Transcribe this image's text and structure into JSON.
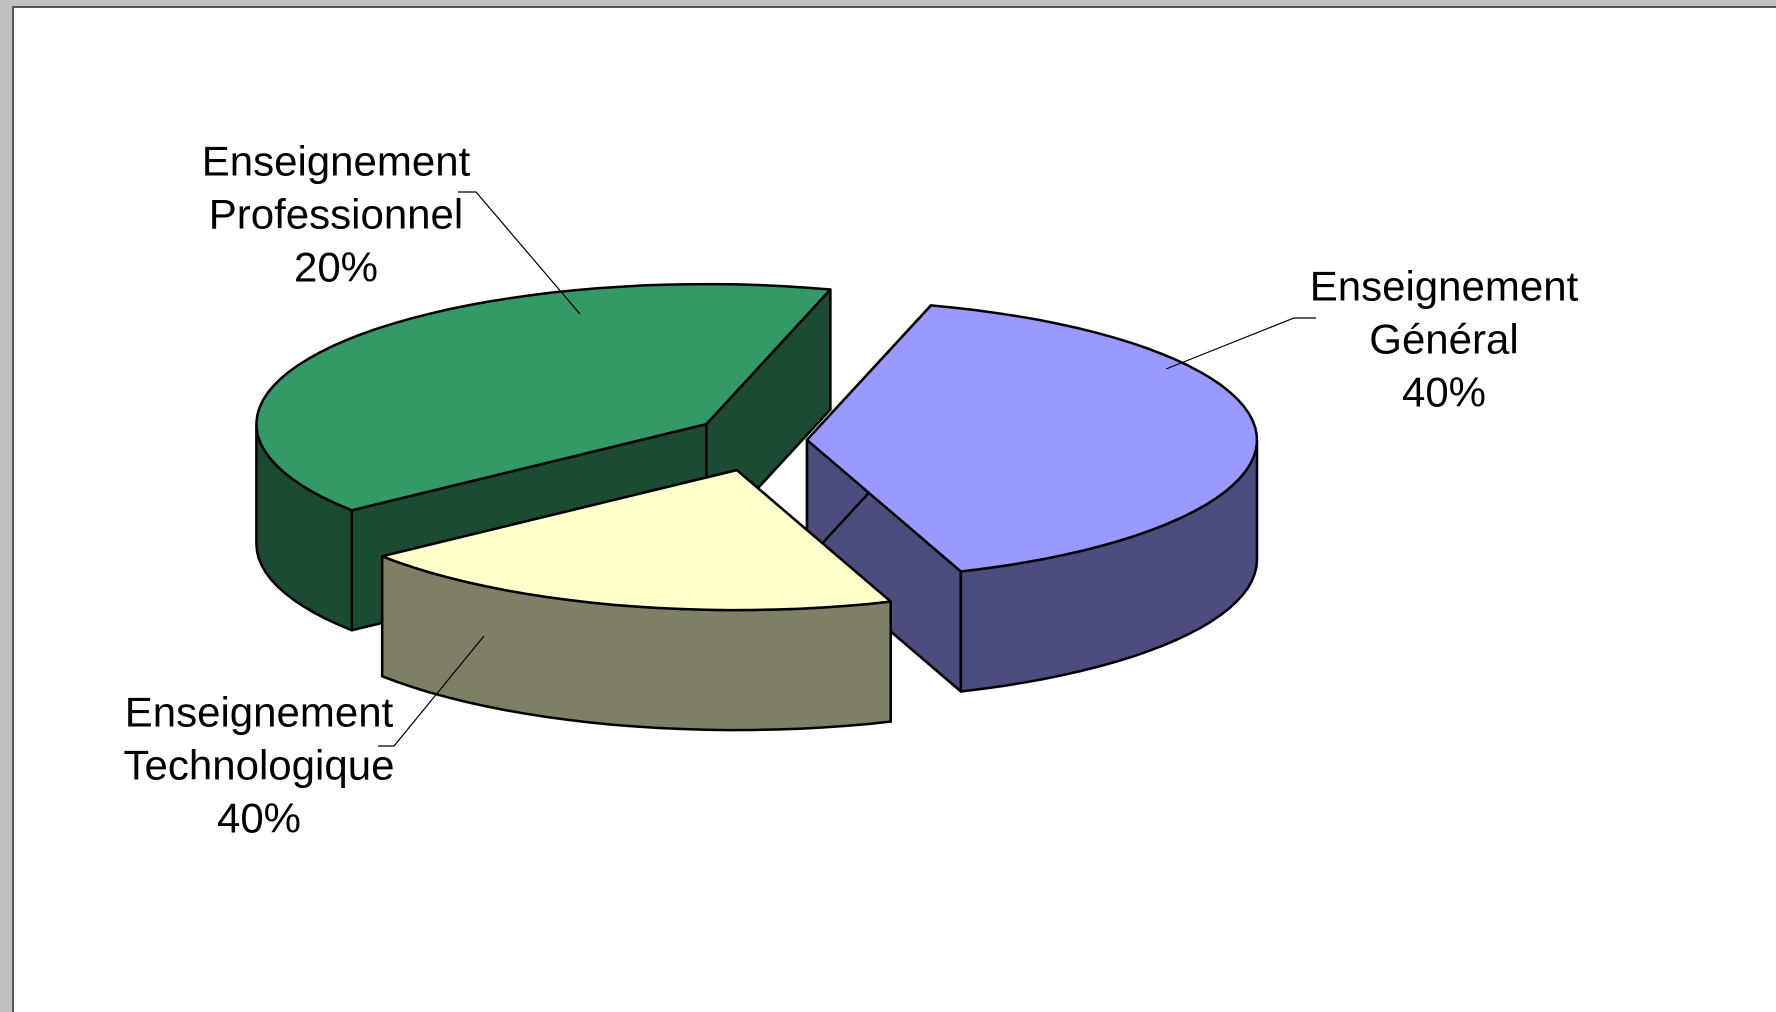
{
  "chart_data": {
    "type": "pie",
    "style": "3d-exploded",
    "legend": "none",
    "slices": [
      {
        "key": "general",
        "label_line1": "Enseignement",
        "label_line2": "Général",
        "percent_label": "40%",
        "value": 40,
        "color": "#9999ff",
        "side_color": "#4c4c7f"
      },
      {
        "key": "technologique",
        "label_line1": "Enseignement",
        "label_line2": "Technologique",
        "percent_label": "40%",
        "value": 40,
        "color": "#339966",
        "side_color": "#1b4c33"
      },
      {
        "key": "professionnel",
        "label_line1": "Enseignement",
        "label_line2": "Professionnel",
        "percent_label": "20%",
        "value": 20,
        "color": "#ffffcc",
        "side_color": "#7f7f66"
      }
    ]
  }
}
